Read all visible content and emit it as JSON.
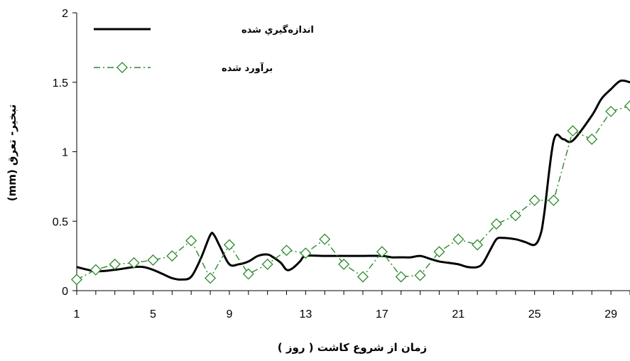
{
  "chart_data": {
    "type": "line",
    "xlabel": "زمان از شروع كاشت ( روز )",
    "ylabel": "تبخير- تعرق (mm)",
    "xlim": [
      1,
      30
    ],
    "ylim": [
      0,
      2
    ],
    "x_ticks": [
      1,
      5,
      9,
      13,
      17,
      21,
      25,
      29
    ],
    "x_tick_labels": [
      "1",
      "5",
      "9",
      "13",
      "17",
      "21",
      "25",
      "29"
    ],
    "y_ticks": [
      0,
      0.5,
      1,
      1.5,
      2
    ],
    "y_tick_labels": [
      "0",
      "0.5",
      "1",
      "1.5",
      "2"
    ],
    "grid": false,
    "legend_position": "top-left",
    "series": [
      {
        "name": "اندازه‌گيري شده",
        "color": "#000000",
        "style": "solid",
        "marker": "none",
        "x": [
          1,
          2,
          3,
          4,
          4.5,
          5,
          5.5,
          6,
          6.5,
          7,
          7.5,
          8,
          8.2,
          8.5,
          9,
          9.5,
          10,
          10.5,
          11,
          11.3,
          11.7,
          12,
          12.3,
          12.7,
          13,
          14,
          15,
          16,
          17,
          17.5,
          18,
          18.5,
          19,
          19.5,
          20,
          20.5,
          21,
          21.5,
          22,
          22.3,
          22.7,
          23,
          23.3,
          24,
          24.5,
          25,
          25.3,
          25.5,
          26,
          26.5,
          27,
          28,
          28.5,
          29,
          29.5,
          30
        ],
        "y": [
          0.17,
          0.14,
          0.15,
          0.17,
          0.17,
          0.15,
          0.12,
          0.09,
          0.08,
          0.1,
          0.23,
          0.4,
          0.4,
          0.32,
          0.19,
          0.19,
          0.21,
          0.25,
          0.26,
          0.24,
          0.2,
          0.15,
          0.16,
          0.21,
          0.25,
          0.25,
          0.25,
          0.25,
          0.25,
          0.24,
          0.24,
          0.24,
          0.25,
          0.23,
          0.21,
          0.2,
          0.19,
          0.17,
          0.17,
          0.2,
          0.3,
          0.37,
          0.38,
          0.37,
          0.35,
          0.33,
          0.4,
          0.55,
          1.08,
          1.09,
          1.08,
          1.26,
          1.38,
          1.45,
          1.51,
          1.5
        ]
      },
      {
        "name": "برآورد شده",
        "color": "#2a8a2a",
        "style": "dash-dot",
        "marker": "diamond",
        "x": [
          1,
          2,
          3,
          4,
          5,
          6,
          7,
          8,
          9,
          10,
          11,
          12,
          13,
          14,
          15,
          16,
          17,
          18,
          19,
          20,
          21,
          22,
          23,
          24,
          25,
          26,
          27,
          28,
          29,
          30
        ],
        "y": [
          0.08,
          0.15,
          0.19,
          0.2,
          0.22,
          0.25,
          0.36,
          0.09,
          0.33,
          0.12,
          0.19,
          0.29,
          0.27,
          0.37,
          0.19,
          0.1,
          0.28,
          0.1,
          0.11,
          0.28,
          0.37,
          0.33,
          0.48,
          0.54,
          0.65,
          0.65,
          1.15,
          1.09,
          1.29,
          1.33
        ]
      }
    ]
  }
}
